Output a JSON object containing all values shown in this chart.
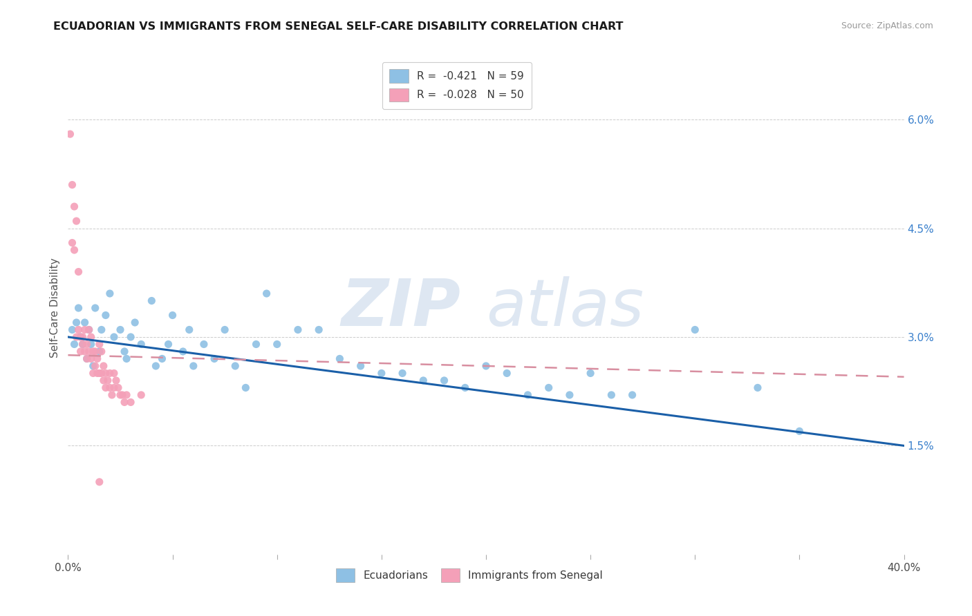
{
  "title": "ECUADORIAN VS IMMIGRANTS FROM SENEGAL SELF-CARE DISABILITY CORRELATION CHART",
  "source": "Source: ZipAtlas.com",
  "ylabel": "Self-Care Disability",
  "right_yticks": [
    "1.5%",
    "3.0%",
    "4.5%",
    "6.0%"
  ],
  "right_ytick_vals": [
    0.015,
    0.03,
    0.045,
    0.06
  ],
  "xmin": 0.0,
  "xmax": 0.4,
  "ymin": 0.0,
  "ymax": 0.068,
  "legend_entry1": "R =  -0.421   N = 59",
  "legend_entry2": "R =  -0.028   N = 50",
  "watermark_zip": "ZIP",
  "watermark_atlas": "atlas",
  "ecuadorian_color": "#8ec0e4",
  "senegal_color": "#f4a0b8",
  "trend_ecuadorian_color": "#1a5fa8",
  "trend_senegal_color": "#d88ea0",
  "ecuadorian_points": [
    [
      0.002,
      0.031
    ],
    [
      0.003,
      0.029
    ],
    [
      0.004,
      0.032
    ],
    [
      0.005,
      0.034
    ],
    [
      0.006,
      0.03
    ],
    [
      0.007,
      0.029
    ],
    [
      0.008,
      0.032
    ],
    [
      0.009,
      0.027
    ],
    [
      0.01,
      0.031
    ],
    [
      0.011,
      0.029
    ],
    [
      0.012,
      0.026
    ],
    [
      0.013,
      0.034
    ],
    [
      0.015,
      0.028
    ],
    [
      0.016,
      0.031
    ],
    [
      0.018,
      0.033
    ],
    [
      0.02,
      0.036
    ],
    [
      0.022,
      0.03
    ],
    [
      0.025,
      0.031
    ],
    [
      0.027,
      0.028
    ],
    [
      0.028,
      0.027
    ],
    [
      0.03,
      0.03
    ],
    [
      0.032,
      0.032
    ],
    [
      0.035,
      0.029
    ],
    [
      0.04,
      0.035
    ],
    [
      0.042,
      0.026
    ],
    [
      0.045,
      0.027
    ],
    [
      0.048,
      0.029
    ],
    [
      0.05,
      0.033
    ],
    [
      0.055,
      0.028
    ],
    [
      0.058,
      0.031
    ],
    [
      0.06,
      0.026
    ],
    [
      0.065,
      0.029
    ],
    [
      0.07,
      0.027
    ],
    [
      0.075,
      0.031
    ],
    [
      0.08,
      0.026
    ],
    [
      0.085,
      0.023
    ],
    [
      0.09,
      0.029
    ],
    [
      0.095,
      0.036
    ],
    [
      0.1,
      0.029
    ],
    [
      0.11,
      0.031
    ],
    [
      0.12,
      0.031
    ],
    [
      0.13,
      0.027
    ],
    [
      0.14,
      0.026
    ],
    [
      0.15,
      0.025
    ],
    [
      0.16,
      0.025
    ],
    [
      0.17,
      0.024
    ],
    [
      0.18,
      0.024
    ],
    [
      0.19,
      0.023
    ],
    [
      0.2,
      0.026
    ],
    [
      0.21,
      0.025
    ],
    [
      0.22,
      0.022
    ],
    [
      0.23,
      0.023
    ],
    [
      0.24,
      0.022
    ],
    [
      0.25,
      0.025
    ],
    [
      0.26,
      0.022
    ],
    [
      0.27,
      0.022
    ],
    [
      0.3,
      0.031
    ],
    [
      0.33,
      0.023
    ],
    [
      0.35,
      0.017
    ]
  ],
  "senegal_points": [
    [
      0.001,
      0.058
    ],
    [
      0.002,
      0.051
    ],
    [
      0.003,
      0.048
    ],
    [
      0.004,
      0.046
    ],
    [
      0.005,
      0.039
    ],
    [
      0.002,
      0.043
    ],
    [
      0.003,
      0.042
    ],
    [
      0.004,
      0.03
    ],
    [
      0.005,
      0.031
    ],
    [
      0.006,
      0.03
    ],
    [
      0.006,
      0.028
    ],
    [
      0.007,
      0.029
    ],
    [
      0.008,
      0.028
    ],
    [
      0.007,
      0.03
    ],
    [
      0.008,
      0.031
    ],
    [
      0.009,
      0.029
    ],
    [
      0.009,
      0.027
    ],
    [
      0.01,
      0.028
    ],
    [
      0.011,
      0.027
    ],
    [
      0.01,
      0.031
    ],
    [
      0.011,
      0.03
    ],
    [
      0.012,
      0.028
    ],
    [
      0.012,
      0.025
    ],
    [
      0.013,
      0.026
    ],
    [
      0.014,
      0.025
    ],
    [
      0.013,
      0.028
    ],
    [
      0.014,
      0.027
    ],
    [
      0.015,
      0.029
    ],
    [
      0.015,
      0.025
    ],
    [
      0.016,
      0.025
    ],
    [
      0.017,
      0.024
    ],
    [
      0.016,
      0.028
    ],
    [
      0.017,
      0.026
    ],
    [
      0.018,
      0.025
    ],
    [
      0.018,
      0.023
    ],
    [
      0.019,
      0.024
    ],
    [
      0.02,
      0.025
    ],
    [
      0.02,
      0.023
    ],
    [
      0.021,
      0.022
    ],
    [
      0.022,
      0.025
    ],
    [
      0.022,
      0.023
    ],
    [
      0.023,
      0.024
    ],
    [
      0.024,
      0.023
    ],
    [
      0.025,
      0.022
    ],
    [
      0.026,
      0.022
    ],
    [
      0.027,
      0.021
    ],
    [
      0.028,
      0.022
    ],
    [
      0.03,
      0.021
    ],
    [
      0.035,
      0.022
    ],
    [
      0.015,
      0.01
    ]
  ]
}
